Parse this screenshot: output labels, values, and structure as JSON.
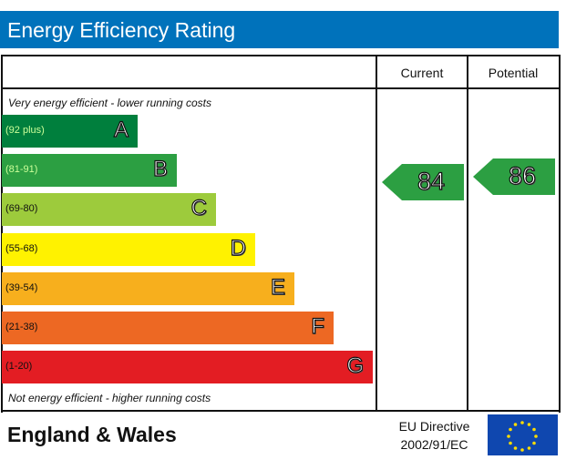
{
  "header": {
    "title": "Energy Efficiency Rating"
  },
  "columns": {
    "current": "Current",
    "potential": "Potential"
  },
  "captions": {
    "top": "Very energy efficient - lower running costs",
    "bottom": "Not energy efficient - higher running costs"
  },
  "footer": {
    "region": "England & Wales",
    "directive_line1": "EU Directive",
    "directive_line2": "2002/91/EC",
    "flag_icon": "eu-flag-icon"
  },
  "chart_data": {
    "type": "bar",
    "title": "Energy Efficiency Rating",
    "categories": [
      "A",
      "B",
      "C",
      "D",
      "E",
      "F",
      "G"
    ],
    "ranges": [
      "(92 plus)",
      "(81-91)",
      "(69-80)",
      "(55-68)",
      "(39-54)",
      "(21-38)",
      "(1-20)"
    ],
    "colors": [
      "#007f3d",
      "#2c9f42",
      "#9dcb3c",
      "#fff200",
      "#f7af1d",
      "#ed6823",
      "#e31d23"
    ],
    "range_text_colors": [
      "#ccff99",
      "#ccff99",
      "#111111",
      "#111111",
      "#111111",
      "#111111",
      "#111111"
    ],
    "relative_lengths": [
      1,
      2,
      3,
      4,
      5,
      6,
      7
    ],
    "current": {
      "value": 84,
      "band": "B",
      "color": "#2c9f42"
    },
    "potential": {
      "value": 86,
      "band": "B",
      "color": "#2c9f42"
    }
  }
}
